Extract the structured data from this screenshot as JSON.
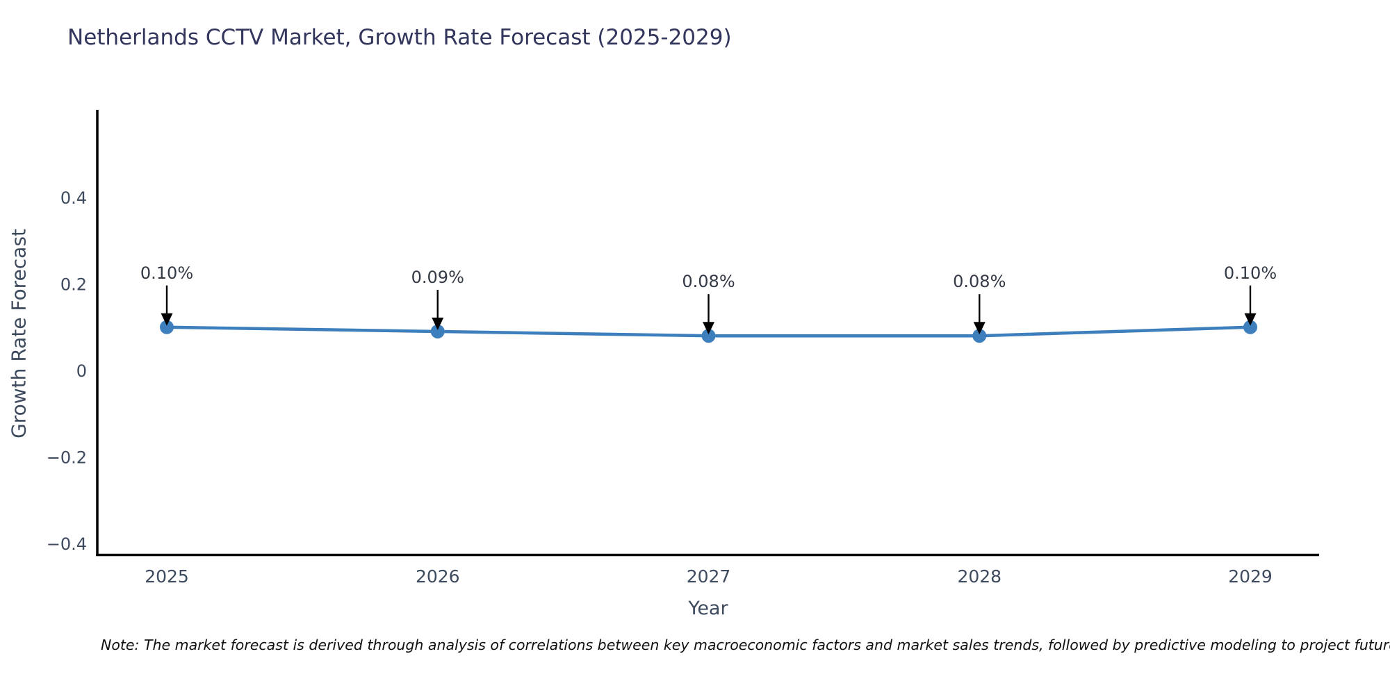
{
  "title": "Netherlands CCTV Market, Growth Rate Forecast (2025-2029)",
  "note": "Note: The market forecast is derived through analysis of correlations between key macroeconomic factors and market sales trends, followed by predictive modeling to project future sales",
  "chart_data": {
    "type": "line",
    "title": "Netherlands CCTV Market, Growth Rate Forecast (2025-2029)",
    "xlabel": "Year",
    "ylabel": "Growth Rate Forecast",
    "x": [
      2025,
      2026,
      2027,
      2028,
      2029
    ],
    "xtick_labels": [
      "2025",
      "2026",
      "2027",
      "2028",
      "2029"
    ],
    "series": [
      {
        "name": "Growth Rate Forecast",
        "values": [
          0.1,
          0.09,
          0.08,
          0.08,
          0.1
        ]
      }
    ],
    "annotations": [
      "0.10%",
      "0.09%",
      "0.08%",
      "0.08%",
      "0.10%"
    ],
    "yticks": [
      0.4,
      0.2,
      0,
      -0.2,
      -0.4
    ],
    "ytick_labels": [
      "0.4",
      "0.2",
      "0",
      "−0.2",
      "−0.4"
    ],
    "ylim": [
      -0.43,
      0.6
    ],
    "grid": false,
    "legend": "none",
    "colors": {
      "line": "#3d7ebd",
      "marker": "#3d7ebd",
      "spine": "#000000",
      "tick_text": "#3e4a5e",
      "annotation_text": "#333a45",
      "arrow": "#000000",
      "title_text": "#32355c"
    }
  }
}
